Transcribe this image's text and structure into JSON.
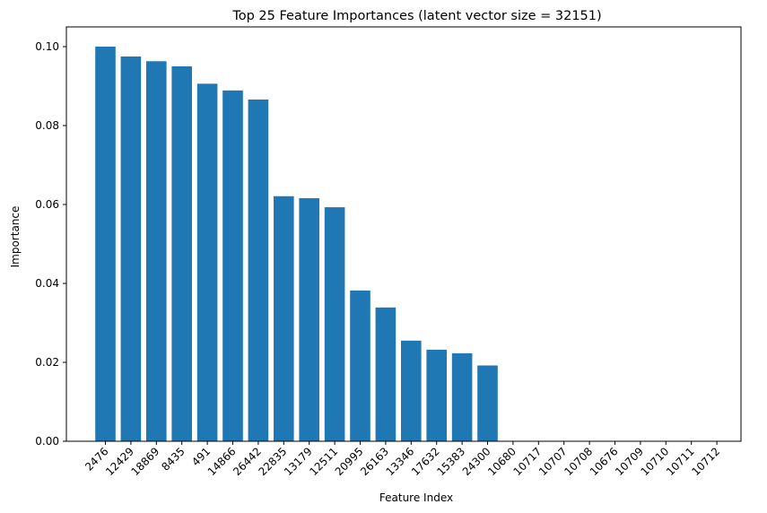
{
  "chart_data": {
    "type": "bar",
    "title": "Top 25 Feature Importances (latent vector size = 32151)",
    "xlabel": "Feature Index",
    "ylabel": "Importance",
    "ylim": [
      0,
      0.105
    ],
    "yticks": [
      0.0,
      0.02,
      0.04,
      0.06,
      0.08,
      0.1
    ],
    "ytick_labels": [
      "0.00",
      "0.02",
      "0.04",
      "0.06",
      "0.08",
      "0.10"
    ],
    "grid": false,
    "bar_color": "#1f77b4",
    "categories": [
      "2476",
      "12429",
      "18869",
      "8435",
      "491",
      "14866",
      "26442",
      "22835",
      "13179",
      "12511",
      "20995",
      "26163",
      "13346",
      "17632",
      "15383",
      "24300",
      "10680",
      "10717",
      "10707",
      "10708",
      "10676",
      "10709",
      "10710",
      "10711",
      "10712"
    ],
    "values": [
      0.1,
      0.0975,
      0.0963,
      0.095,
      0.0906,
      0.0889,
      0.0866,
      0.0621,
      0.0616,
      0.0593,
      0.0382,
      0.0339,
      0.0255,
      0.0232,
      0.0223,
      0.0192,
      0,
      0,
      0,
      0,
      0,
      0,
      0,
      0,
      0
    ]
  }
}
